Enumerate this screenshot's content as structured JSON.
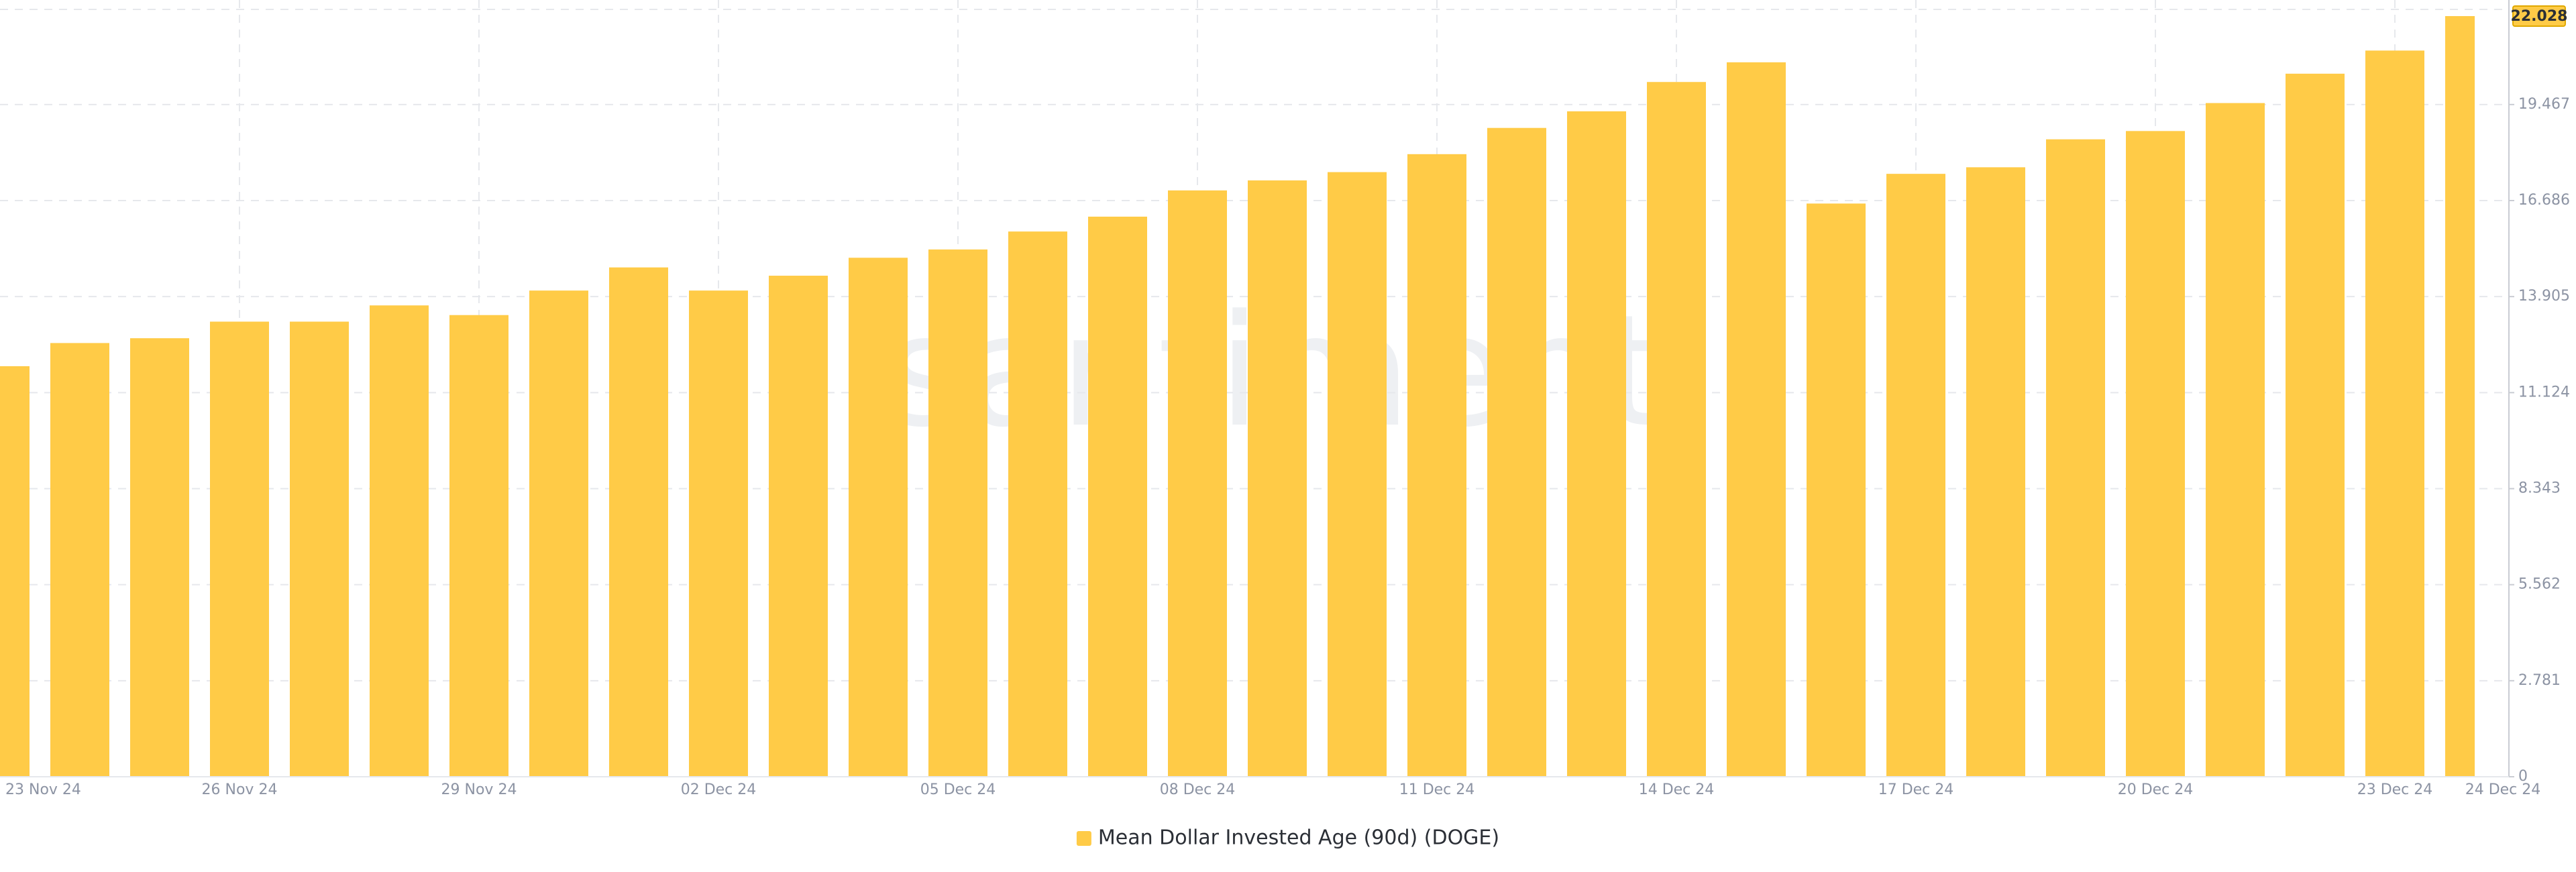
{
  "chart_data": {
    "type": "bar",
    "watermark": "santiment",
    "categories": [
      "23 Nov 24",
      null,
      null,
      "26 Nov 24",
      null,
      null,
      "29 Nov 24",
      null,
      null,
      "02 Dec 24",
      null,
      null,
      "05 Dec 24",
      null,
      null,
      "08 Dec 24",
      null,
      null,
      "11 Dec 24",
      null,
      null,
      "14 Dec 24",
      null,
      null,
      "17 Dec 24",
      null,
      null,
      "20 Dec 24",
      null,
      null,
      "23 Dec 24",
      "24 Dec 24"
    ],
    "series": [
      {
        "name": "Mean Dollar Invested Age (90d) (DOGE)",
        "color": "#ffcb47",
        "values": [
          11.89,
          12.56,
          12.7,
          13.18,
          13.18,
          13.65,
          13.37,
          14.08,
          14.75,
          14.08,
          14.51,
          15.03,
          15.27,
          15.79,
          16.22,
          16.98,
          17.27,
          17.51,
          18.03,
          18.79,
          19.27,
          20.12,
          20.69,
          16.6,
          17.46,
          17.65,
          18.46,
          18.7,
          19.51,
          20.36,
          21.03,
          22.028
        ],
        "value_labels": [
          null,
          null,
          null,
          null,
          null,
          null,
          null,
          null,
          null,
          null,
          null,
          null,
          null,
          null,
          null,
          null,
          null,
          null,
          null,
          null,
          null,
          null,
          null,
          null,
          null,
          null,
          null,
          null,
          null,
          null,
          null,
          "22.028"
        ]
      }
    ],
    "ylim": [
      0,
      22.028
    ],
    "yticks": [
      0,
      2.781,
      5.562,
      8.343,
      11.124,
      13.905,
      16.686,
      19.467
    ],
    "grid": true
  }
}
